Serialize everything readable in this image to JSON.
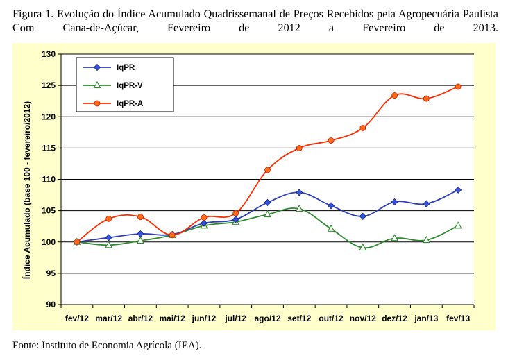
{
  "caption": "Figura 1. Evolução do Índice Acumulado Quadrissemanal de Preços Recebidos pela Agropecuária Paulista Com Cana-de-Açúcar, Fevereiro de 2012 a Fevereiro de 2013.",
  "source": "Fonte: Instituto de Economia Agrícola (IEA).",
  "chart_data": {
    "type": "line",
    "title": "",
    "xlabel": "",
    "ylabel": "Índice Acumulado (base 100 - fevereiro/2012)",
    "ylim": [
      90,
      130
    ],
    "yticks": [
      90,
      95,
      100,
      105,
      110,
      115,
      120,
      125,
      130
    ],
    "grid": true,
    "legend_position": "top-left",
    "categories": [
      "fev/12",
      "mar/12",
      "abr/12",
      "mai/12",
      "jun/12",
      "jul/12",
      "ago/12",
      "set/12",
      "out/12",
      "nov/12",
      "dez/12",
      "jan/13",
      "fev/13"
    ],
    "series": [
      {
        "name": "IqPR",
        "color": "#2f3fb5",
        "marker": "diamond",
        "values": [
          100.0,
          100.7,
          101.3,
          101.2,
          103.0,
          103.6,
          106.3,
          107.9,
          105.8,
          104.1,
          106.4,
          106.1,
          108.3
        ]
      },
      {
        "name": "IqPR-V",
        "color": "#2e8b2e",
        "marker": "triangle-open",
        "values": [
          100.0,
          99.5,
          100.2,
          101.1,
          102.6,
          103.2,
          104.4,
          105.3,
          102.1,
          99.1,
          100.6,
          100.3,
          102.6
        ]
      },
      {
        "name": "IqPR-A",
        "color": "#ff2a00",
        "marker": "circle",
        "values": [
          100.0,
          103.7,
          104.0,
          101.1,
          103.9,
          104.6,
          111.5,
          115.0,
          116.2,
          118.2,
          123.4,
          122.9,
          124.8
        ]
      }
    ]
  }
}
